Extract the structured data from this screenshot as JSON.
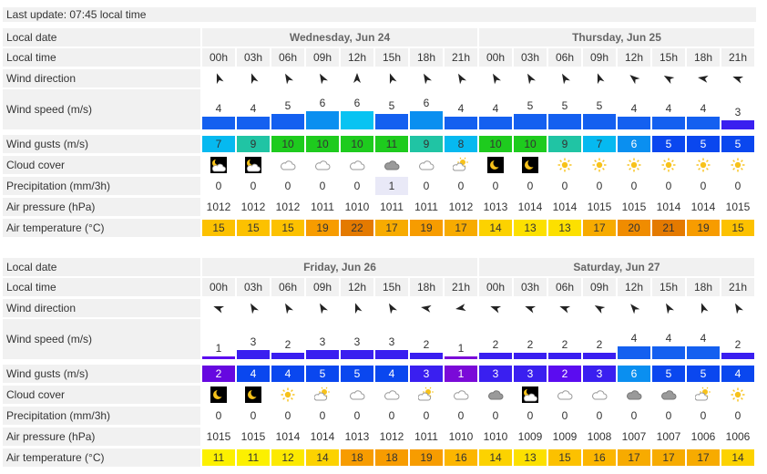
{
  "last_update": "Last update: 07:45 local time",
  "labels": {
    "local_date": "Local date",
    "local_time": "Local time",
    "wind_direction": "Wind direction",
    "wind_speed": "Wind speed (m/s)",
    "wind_gusts": "Wind gusts (m/s)",
    "cloud_cover": "Cloud cover",
    "precipitation": "Precipitation (mm/3h)",
    "air_pressure": "Air pressure (hPa)",
    "air_temperature": "Air temperature (°C)"
  },
  "hours": [
    "00h",
    "03h",
    "06h",
    "09h",
    "12h",
    "15h",
    "18h",
    "21h",
    "00h",
    "03h",
    "06h",
    "09h",
    "12h",
    "15h",
    "18h",
    "21h"
  ],
  "colors": {
    "label_bg": "#f1f1f1",
    "gust_blue": "#0a47ef",
    "gust_green": "#1ecb1e",
    "gust_teal": "#20c4a4",
    "gust_cyan": "#06b9f0",
    "gust_purple": "#5b0cf0"
  },
  "blocks": [
    {
      "days": [
        "Wednesday, Jun 24",
        "Thursday, Jun 25"
      ],
      "wind_direction_deg": [
        160,
        160,
        150,
        150,
        180,
        160,
        150,
        150,
        150,
        150,
        150,
        160,
        130,
        120,
        100,
        110
      ],
      "wind_speed": [
        "4",
        "4",
        "5",
        "6",
        "6",
        "5",
        "6",
        "4",
        "4",
        "5",
        "5",
        "5",
        "4",
        "4",
        "4",
        "3"
      ],
      "wind_speed_values": [
        4,
        4,
        5,
        6,
        6,
        5,
        6,
        4,
        4,
        5,
        5,
        5,
        4,
        4,
        4,
        3
      ],
      "wind_speed_colors": [
        "#1460f0",
        "#1460f0",
        "#1460f0",
        "#0a8ff0",
        "#08c3f2",
        "#1460f0",
        "#0a8ff0",
        "#1460f0",
        "#1460f0",
        "#1460f0",
        "#1460f0",
        "#1460f0",
        "#1460f0",
        "#1460f0",
        "#1460f0",
        "#3a1ff0"
      ],
      "wind_gusts": [
        "7",
        "9",
        "10",
        "10",
        "10",
        "11",
        "9",
        "8",
        "10",
        "10",
        "9",
        "7",
        "6",
        "5",
        "5",
        "5"
      ],
      "wind_gusts_colors": [
        "#06b9f0",
        "#20c4a4",
        "#1ecb1e",
        "#1ecb1e",
        "#1ecb1e",
        "#1ecb1e",
        "#20c4a4",
        "#06b9f0",
        "#1ecb1e",
        "#1ecb1e",
        "#20c4a4",
        "#06b9f0",
        "#0a8ff0",
        "#0a47ef",
        "#0a47ef",
        "#0a47ef"
      ],
      "cloud_icons": [
        "night-partly-cloudy",
        "night-partly-cloudy",
        "cloud",
        "cloud",
        "cloud",
        "dark-cloud",
        "cloud",
        "sun-cloud",
        "night-clear",
        "night-clear",
        "sun",
        "sun",
        "sun",
        "sun",
        "sun",
        "sun"
      ],
      "precipitation": [
        "0",
        "0",
        "0",
        "0",
        "0",
        "1",
        "0",
        "0",
        "0",
        "0",
        "0",
        "0",
        "0",
        "0",
        "0",
        "0"
      ],
      "air_pressure": [
        "1012",
        "1012",
        "1012",
        "1011",
        "1010",
        "1011",
        "1011",
        "1012",
        "1013",
        "1014",
        "1014",
        "1015",
        "1015",
        "1014",
        "1014",
        "1015"
      ],
      "air_temperature": [
        "15",
        "15",
        "15",
        "19",
        "22",
        "17",
        "19",
        "17",
        "14",
        "13",
        "13",
        "17",
        "20",
        "21",
        "19",
        "15"
      ],
      "temp_colors": [
        "#fcc100",
        "#fcc100",
        "#fcc100",
        "#f79c00",
        "#e47a00",
        "#f7ab00",
        "#f79c00",
        "#f7ab00",
        "#fcd200",
        "#fce000",
        "#fce000",
        "#f7ab00",
        "#f08c00",
        "#e47a00",
        "#f79c00",
        "#fcc100"
      ]
    },
    {
      "days": [
        "Friday, Jun 26",
        "Saturday, Jun 27"
      ],
      "wind_direction_deg": [
        110,
        150,
        150,
        150,
        160,
        150,
        100,
        80,
        110,
        110,
        110,
        120,
        140,
        150,
        160,
        150
      ],
      "wind_speed": [
        "1",
        "3",
        "2",
        "3",
        "3",
        "3",
        "2",
        "1",
        "2",
        "2",
        "2",
        "2",
        "4",
        "4",
        "4",
        "2"
      ],
      "wind_speed_values": [
        1,
        3,
        2,
        3,
        3,
        3,
        2,
        1,
        2,
        2,
        2,
        2,
        4,
        4,
        4,
        2
      ],
      "wind_speed_colors": [
        "#5b0cf0",
        "#3a1ff0",
        "#3a1ff0",
        "#3a1ff0",
        "#3a1ff0",
        "#3a1ff0",
        "#3a1ff0",
        "#7a0ad8",
        "#3a1ff0",
        "#3a1ff0",
        "#3a1ff0",
        "#3a1ff0",
        "#1460f0",
        "#1460f0",
        "#1460f0",
        "#3a1ff0"
      ],
      "wind_gusts": [
        "2",
        "4",
        "4",
        "5",
        "5",
        "4",
        "3",
        "1",
        "3",
        "3",
        "2",
        "3",
        "6",
        "5",
        "5",
        "4"
      ],
      "wind_gusts_colors": [
        "#6608e0",
        "#0a47ef",
        "#0a47ef",
        "#0a47ef",
        "#0a47ef",
        "#0a47ef",
        "#3a1ff0",
        "#7a0ad8",
        "#3a1ff0",
        "#3a1ff0",
        "#5b0cf0",
        "#3a1ff0",
        "#0a8ff0",
        "#0a47ef",
        "#0a47ef",
        "#0a47ef"
      ],
      "cloud_icons": [
        "night-clear",
        "night-clear",
        "sun",
        "sun-cloud",
        "cloud",
        "cloud",
        "sun-cloud",
        "cloud",
        "dark-cloud",
        "night-partly-cloudy",
        "cloud",
        "cloud",
        "dark-cloud",
        "dark-cloud",
        "sun-cloud",
        "sun"
      ],
      "precipitation": [
        "0",
        "0",
        "0",
        "0",
        "0",
        "0",
        "0",
        "0",
        "0",
        "0",
        "0",
        "0",
        "0",
        "0",
        "0",
        "0"
      ],
      "air_pressure": [
        "1015",
        "1015",
        "1014",
        "1014",
        "1013",
        "1012",
        "1011",
        "1010",
        "1010",
        "1009",
        "1009",
        "1008",
        "1007",
        "1007",
        "1006",
        "1006"
      ],
      "air_temperature": [
        "11",
        "11",
        "12",
        "14",
        "18",
        "18",
        "19",
        "16",
        "14",
        "13",
        "15",
        "16",
        "17",
        "17",
        "17",
        "14"
      ],
      "temp_colors": [
        "#fcf000",
        "#fcf000",
        "#fce900",
        "#fcd200",
        "#f79c00",
        "#f79c00",
        "#f79c00",
        "#fcb600",
        "#fcd200",
        "#fce000",
        "#fcc100",
        "#fcb600",
        "#f7ab00",
        "#f7ab00",
        "#f7ab00",
        "#fcd200"
      ]
    }
  ]
}
